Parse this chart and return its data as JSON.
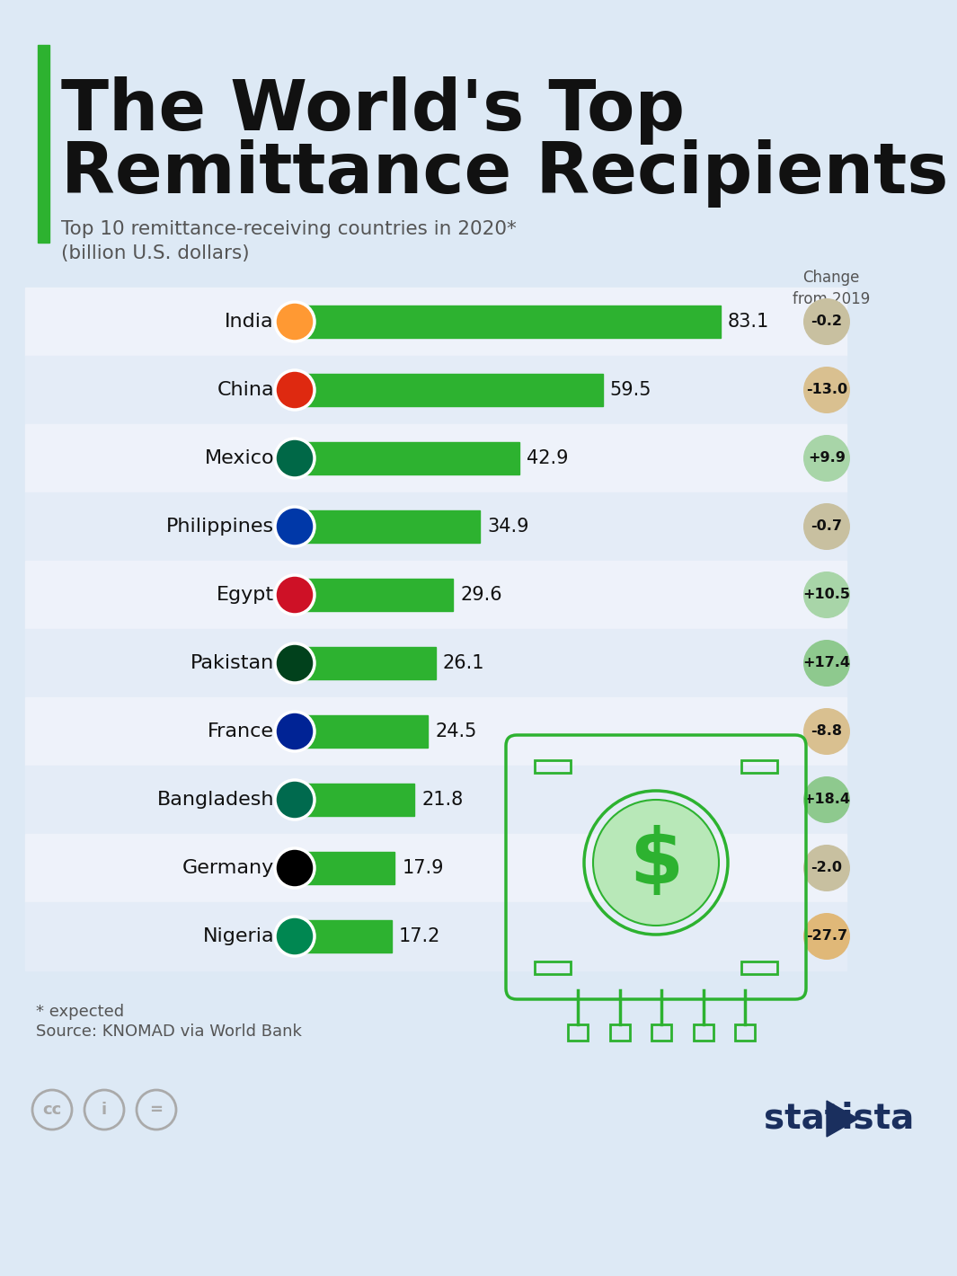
{
  "title_line1": "The World's Top",
  "title_line2": "Remittance Recipients",
  "subtitle_line1": "Top 10 remittance-receiving countries in 2020*",
  "subtitle_line2": "(billion U.S. dollars)",
  "countries": [
    "India",
    "China",
    "Mexico",
    "Philippines",
    "Egypt",
    "Pakistan",
    "France",
    "Bangladesh",
    "Germany",
    "Nigeria"
  ],
  "values": [
    83.1,
    59.5,
    42.9,
    34.9,
    29.6,
    26.1,
    24.5,
    21.8,
    17.9,
    17.2
  ],
  "changes": [
    "-0.2",
    "-13.0",
    "+9.9",
    "-0.7",
    "+10.5",
    "+17.4",
    "-8.8",
    "+18.4",
    "-2.0",
    "-27.7"
  ],
  "change_values": [
    -0.2,
    -13.0,
    9.9,
    -0.7,
    10.5,
    17.4,
    -8.8,
    18.4,
    -2.0,
    -27.7
  ],
  "bar_color": "#2db230",
  "bg_color": "#dde9f5",
  "row_colors": [
    "#eef2fa",
    "#e4ecf7"
  ],
  "title_color": "#111111",
  "accent_green": "#2db230",
  "change_header": "Change\nfrom 2019",
  "footnote1": "* expected",
  "footnote2": "Source: KNOMAD via World Bank",
  "positive_bubble_color": "#90c990",
  "small_positive_bubble_color": "#b0d8b0",
  "negative_bubble_color": "#d4b896",
  "large_negative_bubble_color": "#e8c090",
  "neutral_bubble_color": "#c8c8a8"
}
